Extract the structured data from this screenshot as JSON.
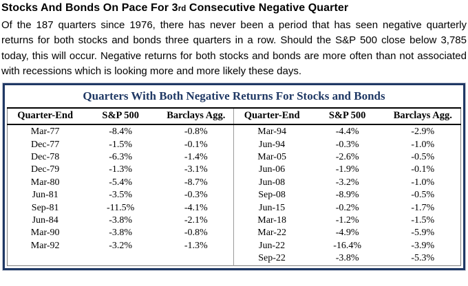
{
  "headline": {
    "text_before_ordinal": "Stocks And Bonds On Pace For 3",
    "ordinal": "rd",
    "text_after_ordinal": " Consecutive Negative Quarter"
  },
  "paragraph": "Of the 187 quarters since 1976, there has never been a period that has seen negative quarterly returns for both stocks and bonds three quarters in a row. Should the S&P 500 close below 3,785 today, this will occur. Negative returns for both stocks and bonds are more often than not associated with recessions which is looking more and more likely these days.",
  "table": {
    "title": "Quarters With Both Negative Returns For Stocks and Bonds",
    "columns": [
      "Quarter-End",
      "S&P 500",
      "Barclays Agg."
    ],
    "left_rows": [
      [
        "Mar-77",
        "-8.4%",
        "-0.8%"
      ],
      [
        "Dec-77",
        "-1.5%",
        "-0.1%"
      ],
      [
        "Dec-78",
        "-6.3%",
        "-1.4%"
      ],
      [
        "Dec-79",
        "-1.3%",
        "-3.1%"
      ],
      [
        "Mar-80",
        "-5.4%",
        "-8.7%"
      ],
      [
        "Jun-81",
        "-3.5%",
        "-0.3%"
      ],
      [
        "Sep-81",
        "-11.5%",
        "-4.1%"
      ],
      [
        "Jun-84",
        "-3.8%",
        "-2.1%"
      ],
      [
        "Mar-90",
        "-3.8%",
        "-0.8%"
      ],
      [
        "Mar-92",
        "-3.2%",
        "-1.3%"
      ]
    ],
    "right_rows": [
      [
        "Mar-94",
        "-4.4%",
        "-2.9%"
      ],
      [
        "Jun-94",
        "-0.3%",
        "-1.0%"
      ],
      [
        "Mar-05",
        "-2.6%",
        "-0.5%"
      ],
      [
        "Jun-06",
        "-1.9%",
        "-0.1%"
      ],
      [
        "Jun-08",
        "-3.2%",
        "-1.0%"
      ],
      [
        "Sep-08",
        "-8.9%",
        "-0.5%"
      ],
      [
        "Jun-15",
        "-0.2%",
        "-1.7%"
      ],
      [
        "Mar-18",
        "-1.2%",
        "-1.5%"
      ],
      [
        "Mar-22",
        "-4.9%",
        "-5.9%"
      ],
      [
        "Jun-22",
        "-16.4%",
        "-3.9%"
      ],
      [
        "Sep-22",
        "-3.8%",
        "-5.3%"
      ]
    ]
  },
  "colors": {
    "accent_navy": "#1F3864",
    "header_rule_black": "#000000",
    "divider_gray": "#9A9A9A",
    "text": "#000000"
  }
}
